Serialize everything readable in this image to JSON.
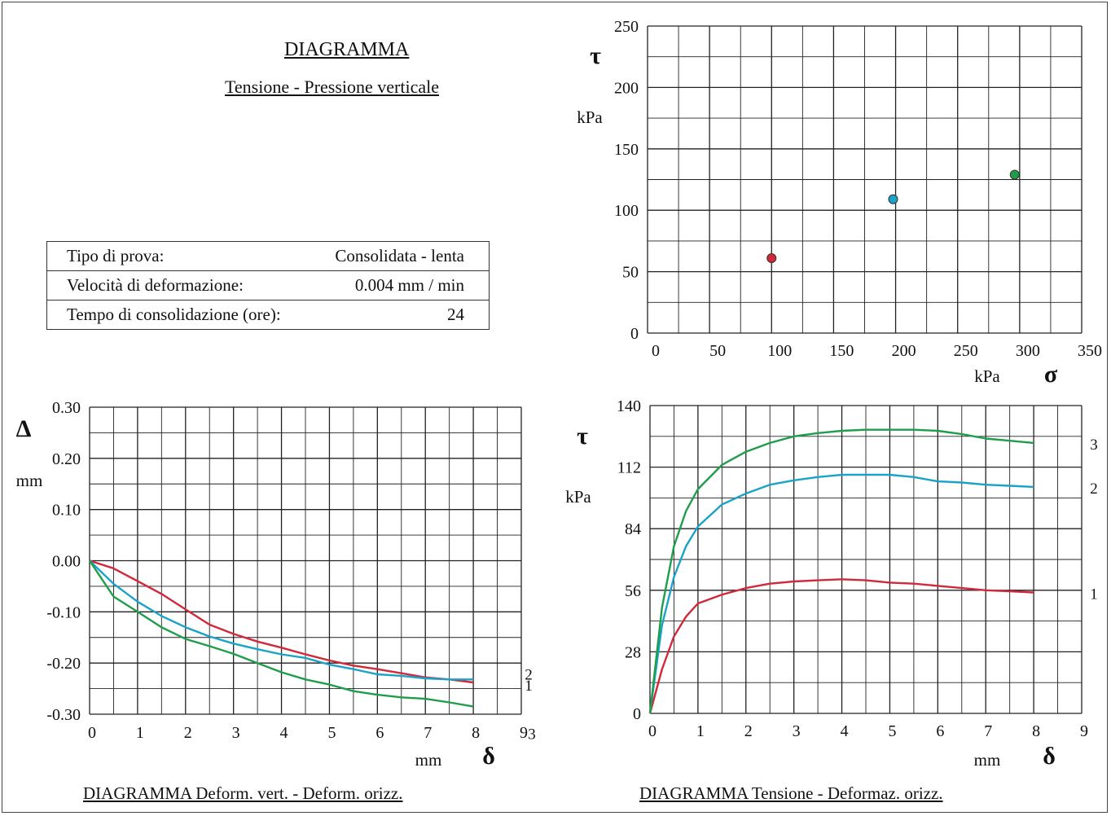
{
  "header": {
    "title": "DIAGRAMMA",
    "subtitle": "Tensione - Pressione verticale"
  },
  "test_params": [
    {
      "label": "Tipo di prova:",
      "value": "Consolidata - lenta"
    },
    {
      "label": "Velocità di deformazione:",
      "value": "0.004 mm / min"
    },
    {
      "label": "Tempo di consolidazione (ore):",
      "value": "24"
    }
  ],
  "colors": {
    "series1": "#d1283a",
    "series2": "#1aa3c9",
    "series3": "#1f9e4a",
    "grid": "#222222"
  },
  "chart_data": [
    {
      "id": "tau_sigma",
      "type": "scatter",
      "title": "",
      "xlabel": "σ",
      "xunit": "kPa",
      "ylabel": "τ",
      "yunit": "kPa",
      "xlim": [
        0,
        350
      ],
      "ylim": [
        0,
        250
      ],
      "x_ticks": [
        "0",
        "50",
        "100",
        "150",
        "200",
        "250",
        "300",
        "350"
      ],
      "y_ticks": [
        "0",
        "50",
        "100",
        "150",
        "200",
        "250"
      ],
      "grid": true,
      "points": [
        {
          "x": 100,
          "y": 61,
          "series": 1
        },
        {
          "x": 198,
          "y": 109,
          "series": 2
        },
        {
          "x": 296,
          "y": 129,
          "series": 3
        }
      ]
    },
    {
      "id": "vert_horiz",
      "type": "line",
      "title": "DIAGRAMMA  Deform. vert. - Deform. orizz.",
      "xlabel": "δ",
      "xunit": "mm",
      "ylabel": "Δ",
      "yunit": "mm",
      "xlim": [
        0,
        9
      ],
      "ylim": [
        -0.3,
        0.3
      ],
      "x_ticks": [
        "0",
        "1",
        "2",
        "3",
        "4",
        "5",
        "6",
        "7",
        "8",
        "9"
      ],
      "y_ticks": [
        "-0.30",
        "-0.20",
        "-0.10",
        "0.00",
        "0.10",
        "0.20",
        "0.30"
      ],
      "grid": true,
      "series": [
        {
          "name": "1",
          "label": "1",
          "color": "series1",
          "x": [
            0,
            0.5,
            1,
            1.5,
            2,
            2.5,
            3,
            3.5,
            4,
            4.5,
            5,
            5.5,
            6,
            6.5,
            7,
            7.5,
            8
          ],
          "y": [
            0,
            -0.015,
            -0.04,
            -0.065,
            -0.095,
            -0.125,
            -0.143,
            -0.158,
            -0.17,
            -0.183,
            -0.195,
            -0.205,
            -0.212,
            -0.22,
            -0.228,
            -0.232,
            -0.238
          ]
        },
        {
          "name": "2",
          "label": "2",
          "color": "series2",
          "x": [
            0,
            0.5,
            1,
            1.5,
            2,
            2.5,
            3,
            3.5,
            4,
            4.5,
            5,
            5.5,
            6,
            6.5,
            7,
            7.5,
            8
          ],
          "y": [
            0,
            -0.045,
            -0.08,
            -0.108,
            -0.13,
            -0.148,
            -0.162,
            -0.173,
            -0.183,
            -0.19,
            -0.203,
            -0.212,
            -0.222,
            -0.225,
            -0.23,
            -0.232,
            -0.232
          ]
        },
        {
          "name": "3",
          "label": "3",
          "color": "series3",
          "x": [
            0,
            0.5,
            1,
            1.5,
            2,
            2.5,
            3,
            3.5,
            4,
            4.5,
            5,
            5.5,
            6,
            6.5,
            7,
            7.5,
            8
          ],
          "y": [
            0,
            -0.07,
            -0.1,
            -0.13,
            -0.153,
            -0.167,
            -0.182,
            -0.2,
            -0.218,
            -0.232,
            -0.242,
            -0.255,
            -0.262,
            -0.267,
            -0.27,
            -0.277,
            -0.285
          ]
        }
      ]
    },
    {
      "id": "tau_delta",
      "type": "line",
      "title": "DIAGRAMMA  Tensione - Deformaz. orizz.",
      "xlabel": "δ",
      "xunit": "mm",
      "ylabel": "τ",
      "yunit": "kPa",
      "xlim": [
        0,
        9
      ],
      "ylim": [
        0,
        140
      ],
      "x_ticks": [
        "0",
        "1",
        "2",
        "3",
        "4",
        "5",
        "6",
        "7",
        "8",
        "9"
      ],
      "y_ticks": [
        "0",
        "28",
        "56",
        "84",
        "112",
        "140"
      ],
      "grid": true,
      "series": [
        {
          "name": "1",
          "label": "1",
          "color": "series1",
          "x": [
            0,
            0.25,
            0.5,
            0.75,
            1,
            1.5,
            2,
            2.5,
            3,
            3.5,
            4,
            4.5,
            5,
            5.5,
            6,
            6.5,
            7,
            7.5,
            8
          ],
          "y": [
            0,
            20,
            35,
            44,
            50,
            54,
            57,
            59,
            60,
            60.5,
            61,
            60.5,
            59.5,
            59,
            58,
            57,
            56,
            55.5,
            55
          ]
        },
        {
          "name": "2",
          "label": "2",
          "color": "series2",
          "x": [
            0,
            0.25,
            0.5,
            0.75,
            1,
            1.5,
            2,
            2.5,
            3,
            3.5,
            4,
            4.5,
            5,
            5.5,
            6,
            6.5,
            7,
            7.5,
            8
          ],
          "y": [
            0,
            40,
            62,
            76,
            85,
            95,
            100,
            104,
            106,
            107.5,
            108.5,
            108.5,
            108.5,
            107.5,
            105.5,
            105,
            104,
            103.5,
            103
          ]
        },
        {
          "name": "3",
          "label": "3",
          "color": "series3",
          "x": [
            0,
            0.25,
            0.5,
            0.75,
            1,
            1.5,
            2,
            2.5,
            3,
            3.5,
            4,
            4.5,
            5,
            5.5,
            6,
            6.5,
            7,
            7.5,
            8
          ],
          "y": [
            0,
            48,
            76,
            92,
            102,
            113,
            119,
            123,
            126,
            127.5,
            128.5,
            129,
            129,
            129,
            128.5,
            127,
            125,
            124,
            123
          ]
        }
      ]
    }
  ]
}
